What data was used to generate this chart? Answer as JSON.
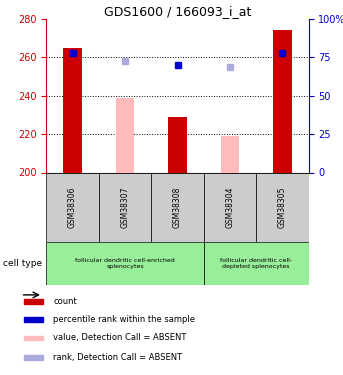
{
  "title": "GDS1600 / 166093_i_at",
  "samples": [
    "GSM38306",
    "GSM38307",
    "GSM38308",
    "GSM38304",
    "GSM38305"
  ],
  "ylim_left": [
    200,
    280
  ],
  "ylim_right": [
    0,
    100
  ],
  "yticks_left": [
    200,
    220,
    240,
    260,
    280
  ],
  "yticks_right": [
    0,
    25,
    50,
    75,
    100
  ],
  "red_bars": [
    265,
    null,
    229,
    null,
    274
  ],
  "pink_bars": [
    null,
    239,
    null,
    219,
    null
  ],
  "blue_squares": [
    262,
    null,
    256,
    null,
    262
  ],
  "lavender_squares": [
    null,
    258,
    null,
    255,
    null
  ],
  "bar_width": 0.35,
  "red_color": "#cc0000",
  "pink_color": "#ffbbbb",
  "blue_color": "#0000cc",
  "lavender_color": "#aaaadd",
  "grid_color": "#000000",
  "group1_label": "follicular dendritic cell-enriched\nsplenocytes",
  "group2_label": "follicular dendritic cell-\ndepleted splenocytes",
  "group1_indices": [
    0,
    1,
    2
  ],
  "group2_indices": [
    3,
    4
  ],
  "cell_type_label": "cell type",
  "legend_items": [
    {
      "color": "#cc0000",
      "label": "count"
    },
    {
      "color": "#0000cc",
      "label": "percentile rank within the sample"
    },
    {
      "color": "#ffbbbb",
      "label": "value, Detection Call = ABSENT"
    },
    {
      "color": "#aaaadd",
      "label": "rank, Detection Call = ABSENT"
    }
  ],
  "right_axis_color": "#0000cc",
  "left_axis_color": "#cc0000",
  "background_xtable": "#cccccc",
  "background_group": "#99ee99"
}
